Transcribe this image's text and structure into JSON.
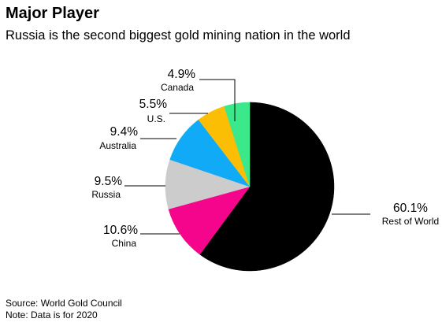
{
  "header": {
    "title": "Major Player",
    "subtitle": "Russia is the second biggest gold mining nation in the world"
  },
  "chart_data": {
    "type": "pie",
    "slices": [
      {
        "label": "Rest of World",
        "value": 60.1,
        "display": "60.1%",
        "color": "#000000"
      },
      {
        "label": "China",
        "value": 10.6,
        "display": "10.6%",
        "color": "#f5058b"
      },
      {
        "label": "Russia",
        "value": 9.5,
        "display": "9.5%",
        "color": "#cccccc"
      },
      {
        "label": "Australia",
        "value": 9.4,
        "display": "9.4%",
        "color": "#11aaf7"
      },
      {
        "label": "U.S.",
        "value": 5.5,
        "display": "5.5%",
        "color": "#fcbe04"
      },
      {
        "label": "Canada",
        "value": 4.9,
        "display": "4.9%",
        "color": "#3be88a"
      }
    ],
    "start": "12 o'clock",
    "direction": "clockwise"
  },
  "footer": {
    "source": "Source: World Gold Council",
    "note": "Note: Data is for 2020"
  }
}
